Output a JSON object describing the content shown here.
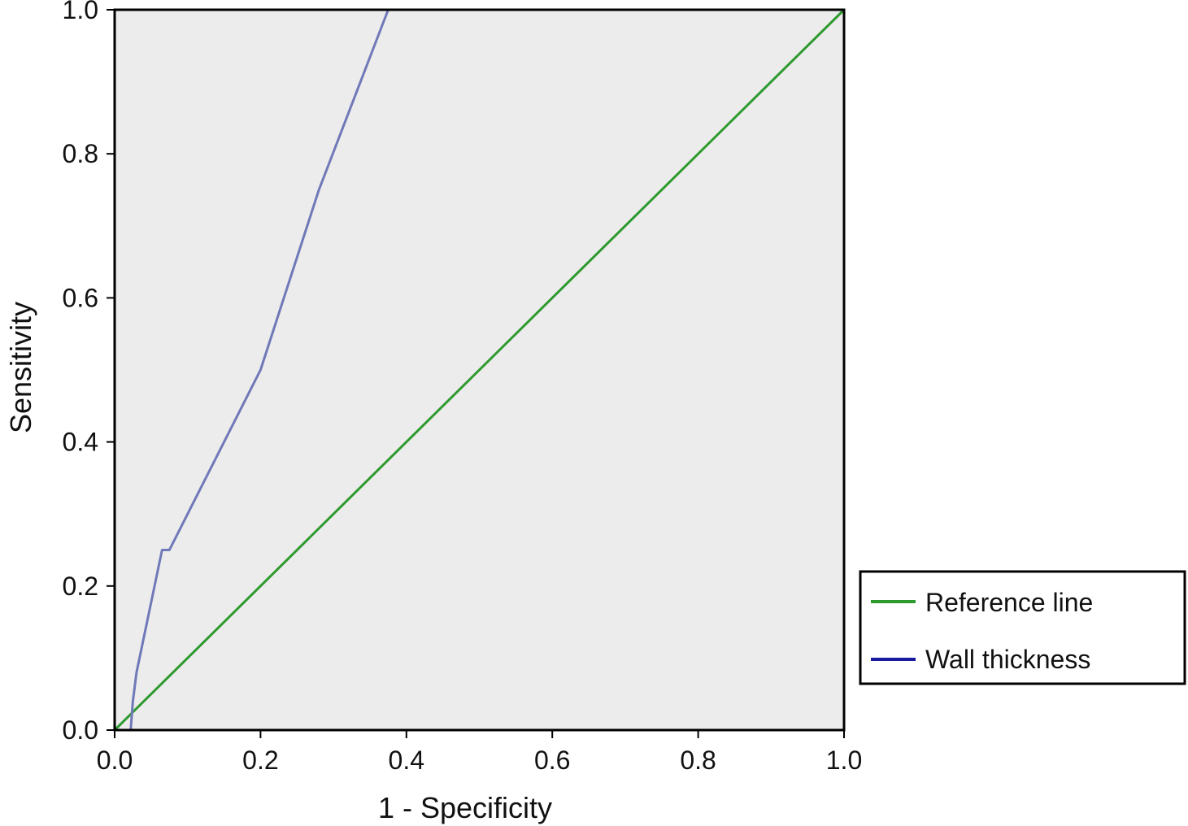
{
  "chart_data": {
    "type": "line",
    "xlabel": "1 - Specificity",
    "ylabel": "Sensitivity",
    "xlim": [
      0.0,
      1.0
    ],
    "ylim": [
      0.0,
      1.0
    ],
    "x_ticks": [
      "0.0",
      "0.2",
      "0.4",
      "0.6",
      "0.8",
      "1.0"
    ],
    "y_ticks": [
      "0.0",
      "0.2",
      "0.4",
      "0.6",
      "0.8",
      "1.0"
    ],
    "grid": false,
    "legend_position": "right",
    "background_color": "#ececec",
    "series": [
      {
        "name": "Reference line",
        "color": "#2e9a2e",
        "x": [
          0.0,
          1.0
        ],
        "y": [
          0.0,
          1.0
        ]
      },
      {
        "name": "Wall thickness",
        "color": "#7079b8",
        "legend_color": "#1a1aa0",
        "x": [
          0.022,
          0.025,
          0.03,
          0.065,
          0.075,
          0.2,
          0.28,
          0.375,
          0.6,
          1.0
        ],
        "y": [
          0.0,
          0.04,
          0.08,
          0.25,
          0.25,
          0.5,
          0.75,
          1.0,
          1.0,
          1.0
        ]
      }
    ]
  }
}
